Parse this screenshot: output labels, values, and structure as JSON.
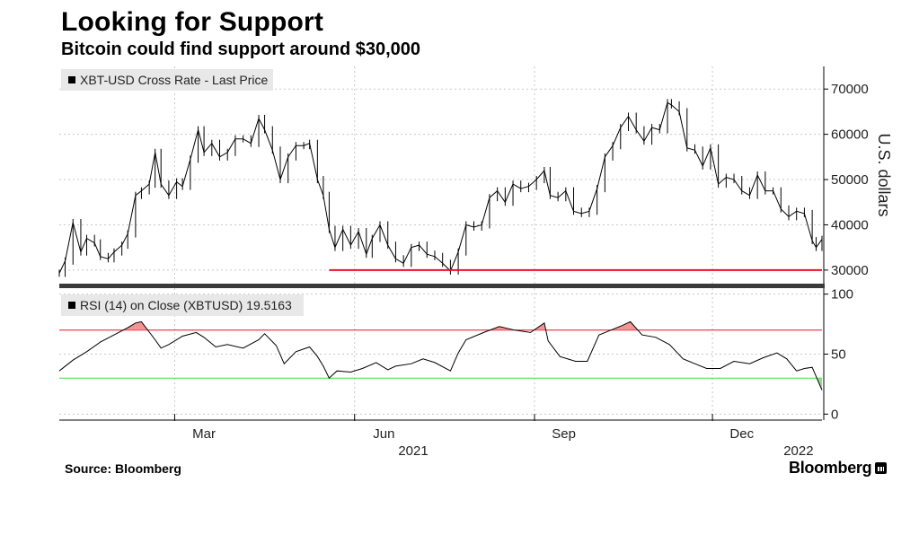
{
  "header": {
    "title": "Looking for Support",
    "subtitle": "Bitcoin could find support around $30,000"
  },
  "footer": {
    "source": "Source: Bloomberg",
    "brand": "Bloomberg"
  },
  "colors": {
    "price_line": "#000000",
    "support_line": "#e8112d",
    "rsi_upper": "#e8112d",
    "rsi_lower": "#3ddc3d",
    "overbought_fill": "#f28080",
    "oversold_fill": "#7fd67f"
  },
  "chart_data": {
    "type": "line",
    "x_axis": {
      "start": "2021-01-01",
      "end": "2022-01-26",
      "month_ticks": [
        "Mar",
        "Jun",
        "Sep",
        "Dec"
      ],
      "year_ticks": [
        "2021",
        "2022"
      ]
    },
    "price_panel": {
      "legend": "XBT-USD Cross Rate - Last Price",
      "ylabel": "U.S. dollars",
      "ylim": [
        27000,
        75000
      ],
      "yticks": [
        "70000",
        "60000",
        "50000",
        "40000",
        "30000"
      ],
      "grid": true,
      "chart_style": "candlestick (daily close shown)",
      "support_level": 30000,
      "support_line_start": "2021-05-19",
      "series": [
        {
          "dates": [
            "2021-01-01",
            "2021-01-04",
            "2021-01-08",
            "2021-01-12",
            "2021-01-15",
            "2021-01-19",
            "2021-01-22",
            "2021-01-26",
            "2021-01-29",
            "2021-02-02",
            "2021-02-05",
            "2021-02-09",
            "2021-02-12",
            "2021-02-16",
            "2021-02-19",
            "2021-02-22",
            "2021-02-26",
            "2021-03-02",
            "2021-03-05",
            "2021-03-09",
            "2021-03-13",
            "2021-03-16",
            "2021-03-20",
            "2021-03-24",
            "2021-03-28",
            "2021-04-01",
            "2021-04-05",
            "2021-04-09",
            "2021-04-13",
            "2021-04-16",
            "2021-04-20",
            "2021-04-24",
            "2021-04-28",
            "2021-05-02",
            "2021-05-06",
            "2021-05-09",
            "2021-05-13",
            "2021-05-16",
            "2021-05-19",
            "2021-05-22",
            "2021-05-26",
            "2021-05-30",
            "2021-06-03",
            "2021-06-07",
            "2021-06-10",
            "2021-06-14",
            "2021-06-18",
            "2021-06-22",
            "2021-06-26",
            "2021-06-30",
            "2021-07-04",
            "2021-07-08",
            "2021-07-12",
            "2021-07-16",
            "2021-07-20",
            "2021-07-24",
            "2021-07-28",
            "2021-08-01",
            "2021-08-05",
            "2021-08-09",
            "2021-08-13",
            "2021-08-17",
            "2021-08-21",
            "2021-08-25",
            "2021-08-29",
            "2021-09-02",
            "2021-09-06",
            "2021-09-09",
            "2021-09-13",
            "2021-09-17",
            "2021-09-21",
            "2021-09-25",
            "2021-09-29",
            "2021-10-03",
            "2021-10-07",
            "2021-10-11",
            "2021-10-15",
            "2021-10-19",
            "2021-10-23",
            "2021-10-27",
            "2021-10-31",
            "2021-11-04",
            "2021-11-08",
            "2021-11-10",
            "2021-11-14",
            "2021-11-18",
            "2021-11-22",
            "2021-11-26",
            "2021-11-30",
            "2021-12-04",
            "2021-12-08",
            "2021-12-12",
            "2021-12-16",
            "2021-12-20",
            "2021-12-24",
            "2021-12-28",
            "2022-01-01",
            "2022-01-05",
            "2022-01-09",
            "2022-01-13",
            "2022-01-17",
            "2022-01-21",
            "2022-01-23",
            "2022-01-26"
          ],
          "values": [
            29300,
            32000,
            40500,
            34000,
            37000,
            36000,
            33000,
            32500,
            34000,
            35500,
            38000,
            46500,
            47500,
            49000,
            56000,
            49000,
            46500,
            49500,
            48500,
            54500,
            61000,
            56000,
            58000,
            55000,
            56000,
            59000,
            59000,
            58000,
            63500,
            61000,
            56500,
            50000,
            55000,
            57500,
            57500,
            58000,
            50000,
            46500,
            39000,
            35000,
            39000,
            35500,
            38500,
            33500,
            37000,
            40000,
            35500,
            32500,
            31500,
            35000,
            35500,
            33500,
            33000,
            31500,
            29800,
            34000,
            40000,
            39500,
            40000,
            46000,
            47500,
            45000,
            49000,
            48000,
            48500,
            50000,
            52000,
            46500,
            46000,
            47500,
            43000,
            42500,
            43000,
            48000,
            55000,
            57500,
            61500,
            64000,
            61000,
            58500,
            61500,
            61000,
            67000,
            66500,
            65000,
            57000,
            56500,
            53000,
            57000,
            49000,
            50500,
            50000,
            47500,
            46500,
            51000,
            47500,
            47500,
            43500,
            41800,
            43000,
            42500,
            36500,
            35000,
            36800
          ]
        }
      ]
    },
    "rsi_panel": {
      "legend": "RSI (14)  on Close (XBTUSD) 19.5163",
      "ylim": [
        -5,
        105
      ],
      "yticks": [
        "100",
        "50",
        "0"
      ],
      "overbought": 70,
      "oversold": 30,
      "grid": true,
      "series": [
        {
          "dates": [
            "2021-01-01",
            "2021-01-08",
            "2021-01-15",
            "2021-01-22",
            "2021-01-29",
            "2021-02-05",
            "2021-02-09",
            "2021-02-12",
            "2021-02-19",
            "2021-02-22",
            "2021-02-26",
            "2021-03-05",
            "2021-03-12",
            "2021-03-16",
            "2021-03-22",
            "2021-03-28",
            "2021-04-05",
            "2021-04-13",
            "2021-04-16",
            "2021-04-22",
            "2021-04-26",
            "2021-05-02",
            "2021-05-09",
            "2021-05-13",
            "2021-05-16",
            "2021-05-19",
            "2021-05-23",
            "2021-05-30",
            "2021-06-05",
            "2021-06-12",
            "2021-06-18",
            "2021-06-22",
            "2021-06-30",
            "2021-07-06",
            "2021-07-12",
            "2021-07-20",
            "2021-07-24",
            "2021-07-28",
            "2021-08-06",
            "2021-08-14",
            "2021-08-22",
            "2021-08-30",
            "2021-09-06",
            "2021-09-08",
            "2021-09-14",
            "2021-09-22",
            "2021-09-28",
            "2021-10-04",
            "2021-10-10",
            "2021-10-16",
            "2021-10-20",
            "2021-10-26",
            "2021-11-02",
            "2021-11-09",
            "2021-11-16",
            "2021-11-22",
            "2021-11-28",
            "2021-12-05",
            "2021-12-12",
            "2021-12-20",
            "2021-12-27",
            "2022-01-03",
            "2022-01-08",
            "2022-01-13",
            "2022-01-17",
            "2022-01-21",
            "2022-01-26"
          ],
          "values": [
            36,
            45,
            52,
            60,
            66,
            72,
            76,
            77,
            62,
            55,
            58,
            65,
            68,
            64,
            56,
            58,
            55,
            62,
            67,
            57,
            42,
            52,
            56,
            48,
            40,
            30,
            36,
            35,
            38,
            43,
            37,
            40,
            42,
            46,
            43,
            36,
            51,
            62,
            68,
            73,
            70,
            68,
            76,
            61,
            48,
            44,
            44,
            66,
            70,
            74,
            77,
            66,
            64,
            58,
            46,
            42,
            38,
            38,
            44,
            42,
            47,
            51,
            46,
            36,
            38,
            39,
            20
          ]
        }
      ]
    }
  }
}
